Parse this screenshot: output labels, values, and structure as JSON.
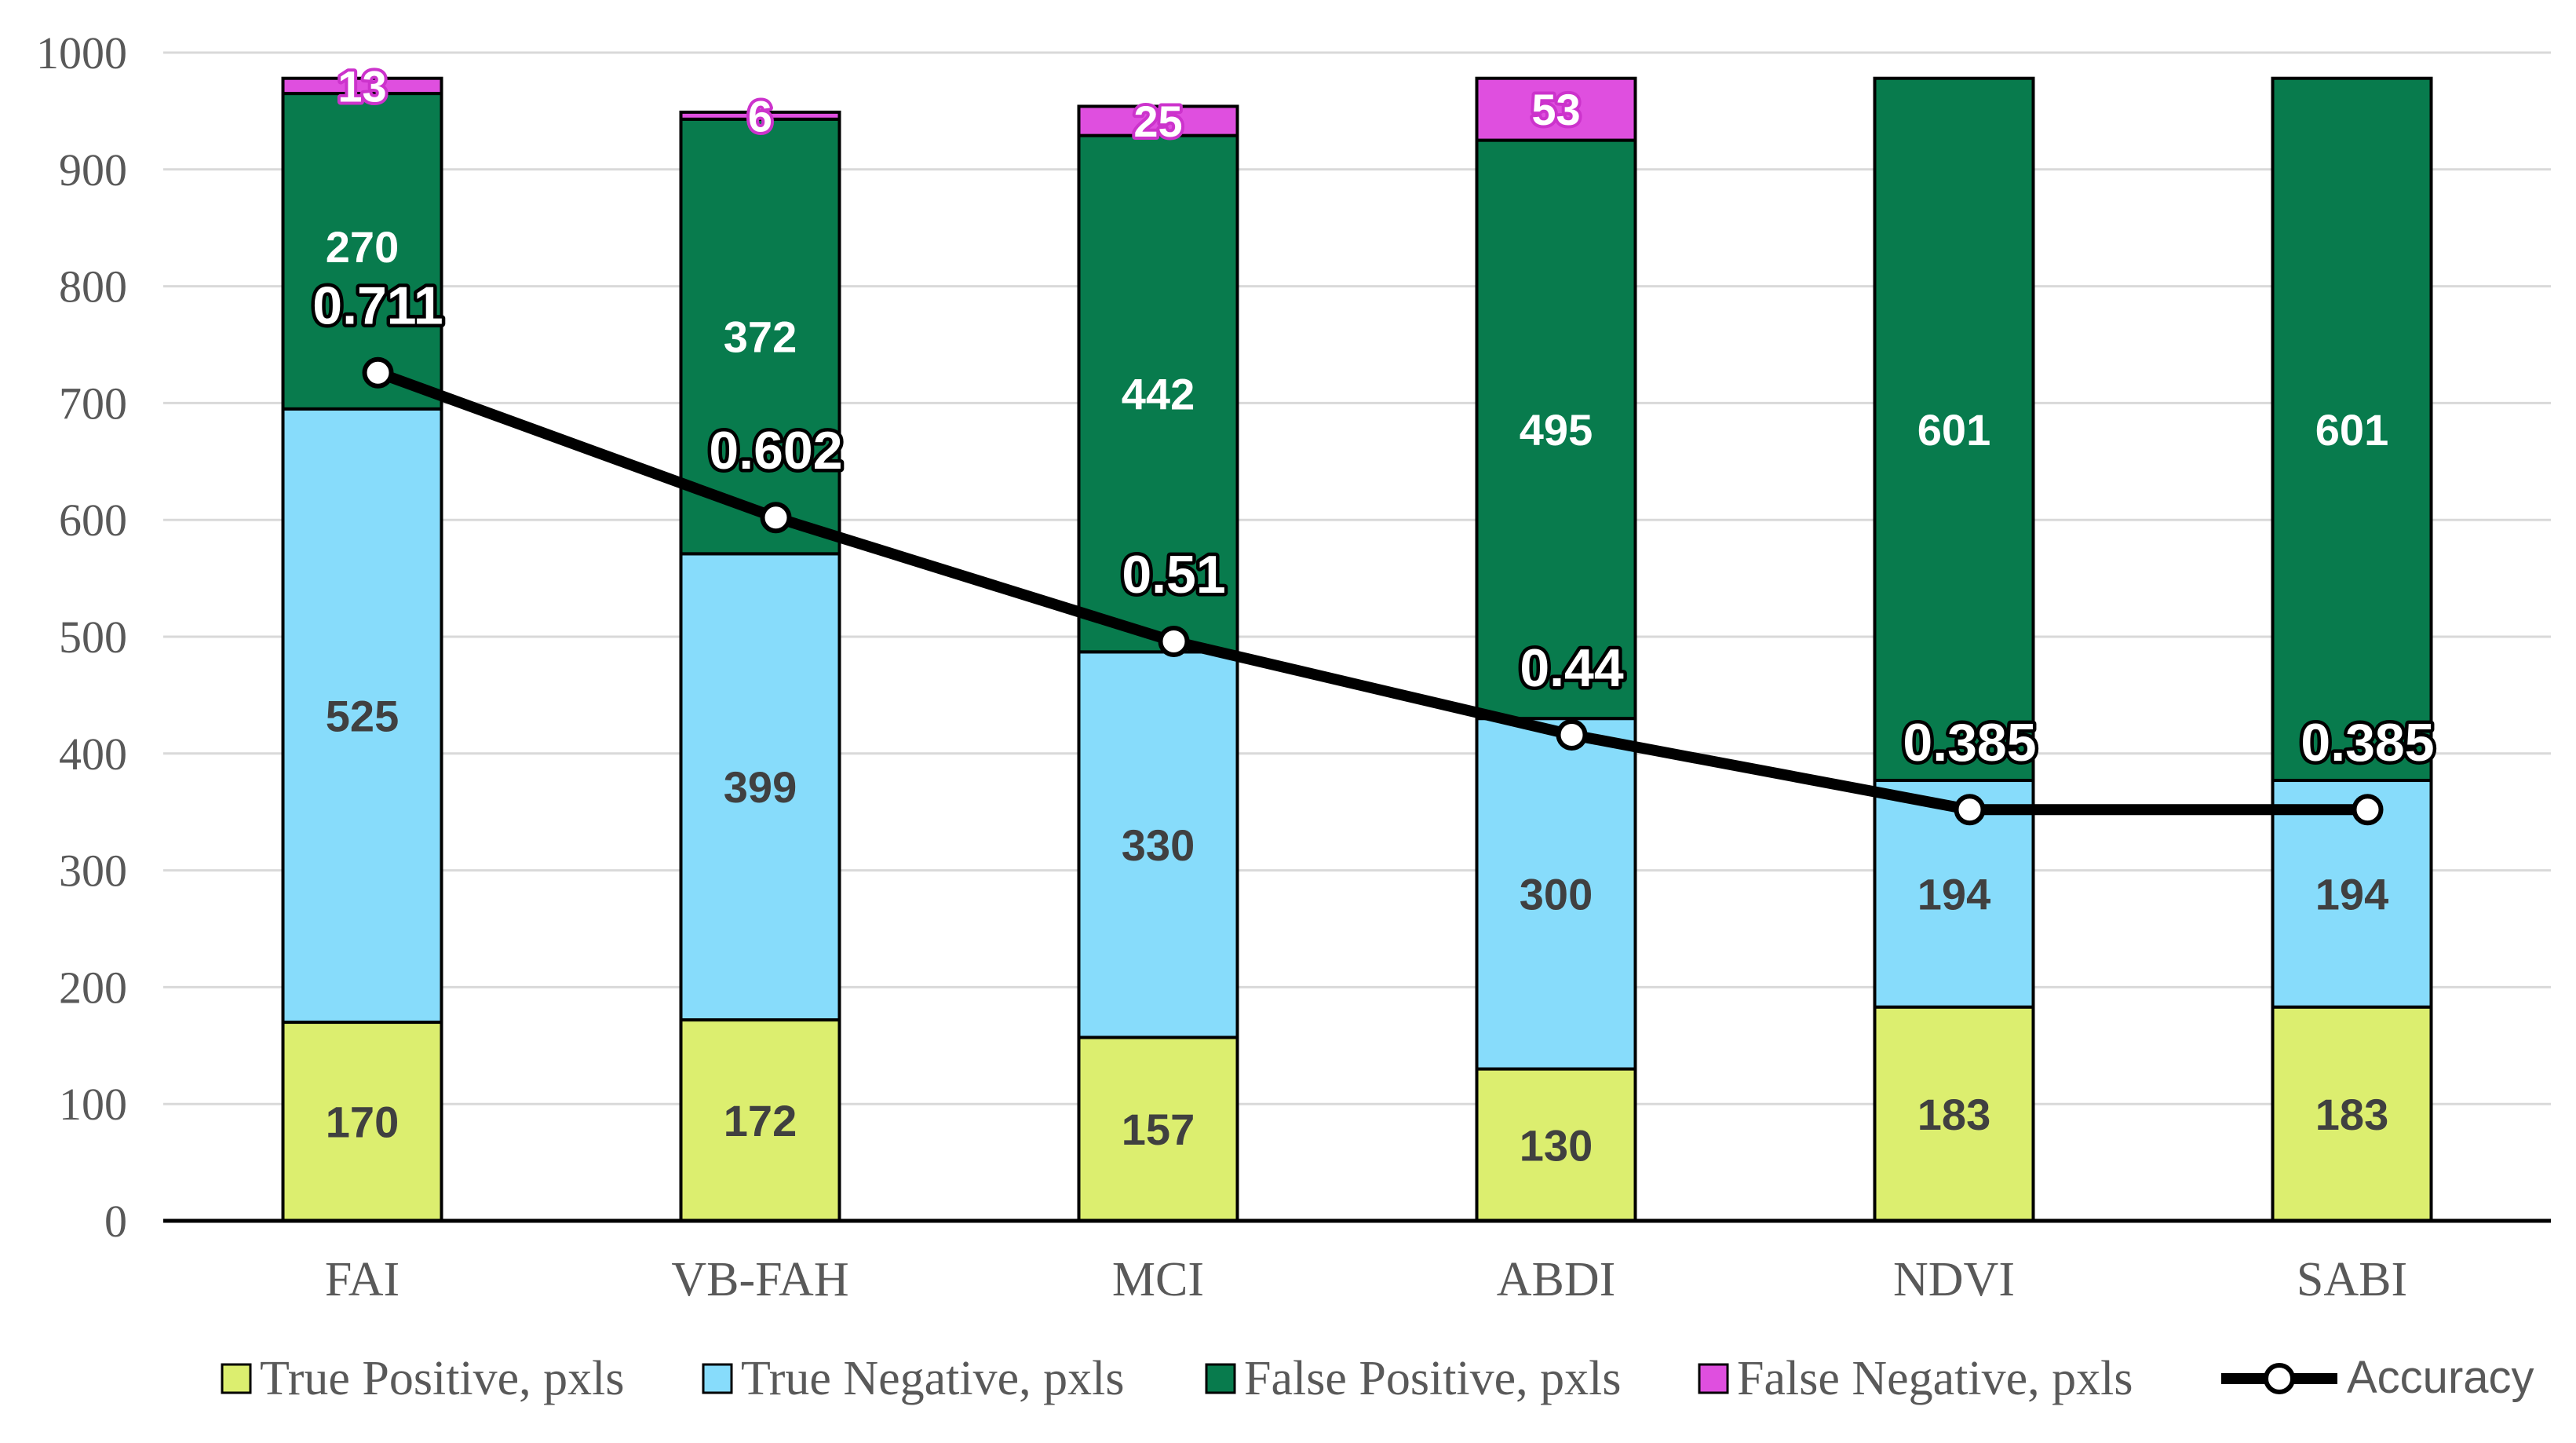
{
  "chart_data": {
    "type": "bar",
    "stacked": true,
    "categories": [
      "FAI",
      "VB-FAH",
      "MCI",
      "ABDI",
      "NDVI",
      "SABI"
    ],
    "series": [
      {
        "name": "True Positive, pxls",
        "color": "#dcee6f",
        "label_color": "#404040",
        "values": [
          170,
          172,
          157,
          130,
          183,
          183
        ]
      },
      {
        "name": "True Negative, pxls",
        "color": "#87dcfb",
        "label_color": "#404040",
        "values": [
          525,
          399,
          330,
          300,
          194,
          194
        ]
      },
      {
        "name": "False Positive, pxls",
        "color": "#087b4d",
        "label_color": "#ffffff",
        "values": [
          270,
          372,
          442,
          495,
          601,
          601
        ]
      },
      {
        "name": "False Negative, pxls",
        "color": "#df4fdf",
        "label_color": "#ffffff",
        "values": [
          13,
          6,
          25,
          53,
          null,
          null
        ]
      }
    ],
    "line_series": {
      "name": "Accuracy",
      "values": [
        0.711,
        0.602,
        0.51,
        0.44,
        0.385,
        0.385
      ],
      "plotted_on_primary_axis": [
        726,
        602,
        496,
        416,
        352,
        352
      ]
    },
    "yticks": [
      "0",
      "100",
      "200",
      "300",
      "400",
      "500",
      "600",
      "700",
      "800",
      "900",
      "1000"
    ],
    "ylim": [
      0,
      1000
    ],
    "grid": true,
    "legend": "bottom",
    "title": "",
    "xlabel": "",
    "ylabel": ""
  }
}
